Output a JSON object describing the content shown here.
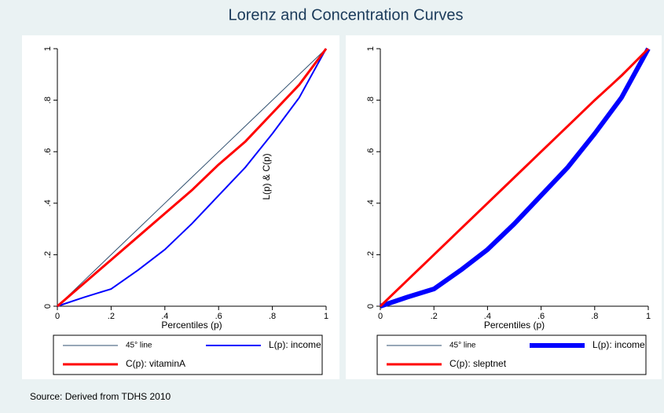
{
  "title": "Lorenz and Concentration Curves",
  "note": "Source: Derived from TDHS 2010",
  "chart_data": [
    {
      "type": "line",
      "xlabel": "Percentiles (p)",
      "ylabel": "L(p) & C(p)",
      "x": [
        0,
        0.1,
        0.2,
        0.3,
        0.4,
        0.5,
        0.6,
        0.7,
        0.8,
        0.9,
        1
      ],
      "xlim": [
        0,
        1
      ],
      "ylim": [
        0,
        1
      ],
      "xticks": [
        0,
        {
          "value": 0.2,
          "label": ".2"
        },
        {
          "value": 0.4,
          "label": ".4"
        },
        {
          "value": 0.6,
          "label": ".6"
        },
        {
          "value": 0.8,
          "label": ".8"
        },
        1
      ],
      "yticks": [
        0,
        {
          "value": 0.2,
          "label": ".2"
        },
        {
          "value": 0.4,
          "label": ".4"
        },
        {
          "value": 0.6,
          "label": ".6"
        },
        {
          "value": 0.8,
          "label": ".8"
        },
        1
      ],
      "grid": false,
      "series": [
        {
          "name": "45° line",
          "color": "#2f4f6f",
          "line_width": 1,
          "values": [
            0,
            0.1,
            0.2,
            0.3,
            0.4,
            0.5,
            0.6,
            0.7,
            0.8,
            0.9,
            1
          ]
        },
        {
          "name": "L(p): income",
          "color": "#0000ff",
          "line_width": 2,
          "values": [
            0,
            0.035,
            0.067,
            0.14,
            0.22,
            0.32,
            0.43,
            0.54,
            0.67,
            0.81,
            1
          ]
        },
        {
          "name": "C(p): vitaminA",
          "color": "#ff0000",
          "line_width": 3,
          "values": [
            0,
            0.09,
            0.18,
            0.27,
            0.36,
            0.45,
            0.55,
            0.64,
            0.75,
            0.86,
            1
          ]
        }
      ]
    },
    {
      "type": "line",
      "xlabel": "Percentiles (p)",
      "x": [
        0,
        0.1,
        0.2,
        0.3,
        0.4,
        0.5,
        0.6,
        0.7,
        0.8,
        0.9,
        1
      ],
      "xlim": [
        0,
        1
      ],
      "ylim": [
        0,
        1
      ],
      "xticks": [
        0,
        {
          "value": 0.2,
          "label": ".2"
        },
        {
          "value": 0.4,
          "label": ".4"
        },
        {
          "value": 0.6,
          "label": ".6"
        },
        {
          "value": 0.8,
          "label": ".8"
        },
        1
      ],
      "yticks": [
        0,
        {
          "value": 0.2,
          "label": ".2"
        },
        {
          "value": 0.4,
          "label": ".4"
        },
        {
          "value": 0.6,
          "label": ".6"
        },
        {
          "value": 0.8,
          "label": ".8"
        },
        1
      ],
      "grid": false,
      "series": [
        {
          "name": "45° line",
          "color": "#2f4f6f",
          "line_width": 1,
          "values": [
            0,
            0.1,
            0.2,
            0.3,
            0.4,
            0.5,
            0.6,
            0.7,
            0.8,
            0.9,
            1
          ]
        },
        {
          "name": "L(p): income",
          "color": "#0000ff",
          "line_width": 6,
          "values": [
            0,
            0.035,
            0.067,
            0.14,
            0.22,
            0.32,
            0.43,
            0.54,
            0.67,
            0.81,
            1
          ]
        },
        {
          "name": "C(p): sleptnet",
          "color": "#ff0000",
          "line_width": 3,
          "values": [
            0,
            0.1,
            0.2,
            0.3,
            0.4,
            0.5,
            0.6,
            0.7,
            0.8,
            0.895,
            1
          ]
        }
      ]
    }
  ]
}
